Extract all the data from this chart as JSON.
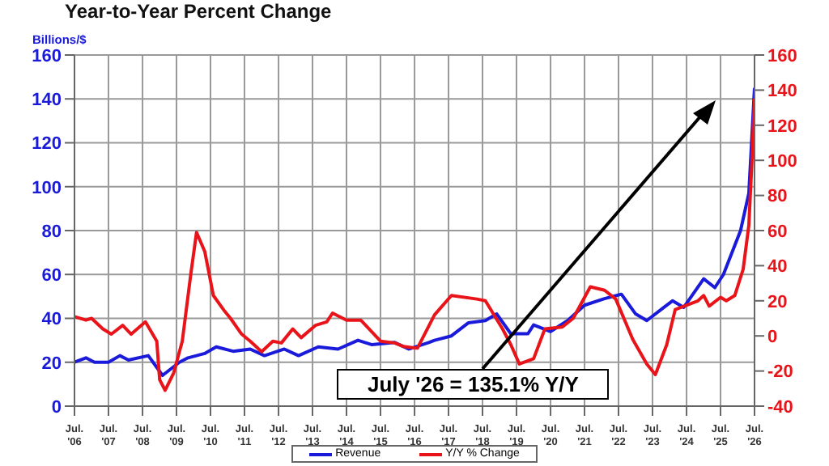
{
  "chart_data": {
    "type": "line",
    "title": "Year-to-Year Percent Change",
    "ylabel": "Billions/$",
    "xlim": [
      "2006-07",
      "2026-07"
    ],
    "xticks": [
      {
        "value": "2006-07",
        "label": "Jul. '06"
      },
      {
        "value": "2007-07",
        "label": "Jul. '07"
      },
      {
        "value": "2008-07",
        "label": "Jul. '08"
      },
      {
        "value": "2009-07",
        "label": "Jul. '09"
      },
      {
        "value": "2010-07",
        "label": "Jul. '10"
      },
      {
        "value": "2011-07",
        "label": "Jul. '11"
      },
      {
        "value": "2012-07",
        "label": "Jul. '12"
      },
      {
        "value": "2013-07",
        "label": "Jul. '13"
      },
      {
        "value": "2014-07",
        "label": "Jul. '14"
      },
      {
        "value": "2015-07",
        "label": "Jul. '15"
      },
      {
        "value": "2016-07",
        "label": "Jul. '16"
      },
      {
        "value": "2017-07",
        "label": "Jul. '17"
      },
      {
        "value": "2018-07",
        "label": "Jul. '18"
      },
      {
        "value": "2019-07",
        "label": "Jul. '19"
      },
      {
        "value": "2020-07",
        "label": "Jul. '20"
      },
      {
        "value": "2021-07",
        "label": "Jul. '21"
      },
      {
        "value": "2022-07",
        "label": "Jul. '22"
      },
      {
        "value": "2023-07",
        "label": "Jul. '23"
      },
      {
        "value": "2024-07",
        "label": "Jul. '24"
      },
      {
        "value": "2025-07",
        "label": "Jul. '25"
      },
      {
        "value": "2026-07",
        "label": "Jul. '26"
      }
    ],
    "ylim": [
      0,
      160
    ],
    "yticks": [
      0,
      20,
      40,
      60,
      80,
      100,
      120,
      140,
      160
    ],
    "y2lim": [
      -40,
      160
    ],
    "y2ticks": [
      -40,
      -20,
      0,
      20,
      40,
      60,
      80,
      100,
      120,
      140,
      160
    ],
    "grid": true,
    "legend": "bottom",
    "marker": "none",
    "line_style": "solid",
    "annotations": [
      "July '26 = 135.1% Y/Y"
    ],
    "series": [
      {
        "name": "Revenue",
        "color": "#1a1adb",
        "x": [
          "2006-07",
          "2006-11",
          "2007-02",
          "2007-07",
          "2007-11",
          "2008-02",
          "2008-09",
          "2009-02",
          "2009-08",
          "2009-11",
          "2010-05",
          "2010-09",
          "2011-03",
          "2011-09",
          "2012-02",
          "2012-09",
          "2013-02",
          "2013-09",
          "2014-04",
          "2014-11",
          "2015-04",
          "2015-12",
          "2016-05",
          "2016-12",
          "2017-02",
          "2017-08",
          "2018-02",
          "2018-08",
          "2018-12",
          "2019-05",
          "2019-11",
          "2020-01",
          "2020-07",
          "2021-01",
          "2021-07",
          "2022-02",
          "2022-08",
          "2023-01",
          "2023-05",
          "2023-11",
          "2024-02",
          "2024-06",
          "2025-01",
          "2025-05",
          "2025-08",
          "2026-02",
          "2026-05",
          "2026-07"
        ],
        "values": [
          20,
          22,
          20,
          20,
          23,
          21,
          23,
          14,
          20,
          22,
          24,
          27,
          25,
          26,
          23,
          26,
          23,
          27,
          26,
          30,
          28,
          29,
          26,
          29,
          30,
          32,
          38,
          39,
          42,
          33,
          33,
          37,
          34,
          39,
          46,
          49,
          51,
          42,
          39,
          45,
          48,
          45,
          58,
          54,
          60,
          80,
          97,
          145
        ]
      },
      {
        "name": "Y/Y % Change",
        "color": "#e8141a",
        "axis": "y2",
        "x": [
          "2006-07",
          "2006-11",
          "2007-01",
          "2007-05",
          "2007-08",
          "2007-12",
          "2008-03",
          "2008-08",
          "2008-12",
          "2009-01",
          "2009-03",
          "2009-06",
          "2009-09",
          "2009-12",
          "2010-02",
          "2010-05",
          "2010-08",
          "2010-12",
          "2011-02",
          "2011-06",
          "2011-09",
          "2012-01",
          "2012-05",
          "2012-08",
          "2012-12",
          "2013-03",
          "2013-08",
          "2013-12",
          "2014-02",
          "2014-07",
          "2014-12",
          "2015-03",
          "2015-07",
          "2015-12",
          "2016-03",
          "2016-08",
          "2017-02",
          "2017-08",
          "2018-05",
          "2018-08",
          "2019-02",
          "2019-05",
          "2019-08",
          "2020-01",
          "2020-05",
          "2020-11",
          "2021-03",
          "2021-09",
          "2022-02",
          "2022-06",
          "2022-12",
          "2023-05",
          "2023-08",
          "2023-12",
          "2024-03",
          "2024-11",
          "2025-01",
          "2025-03",
          "2025-07",
          "2025-09",
          "2025-12",
          "2026-03",
          "2026-05",
          "2026-06",
          "2026-07"
        ],
        "values": [
          11,
          9,
          10,
          4,
          1,
          6,
          1,
          8,
          -3,
          -25,
          -31,
          -21,
          -3,
          35,
          59,
          48,
          23,
          14,
          10,
          1,
          -3,
          -9,
          -3,
          -4,
          4,
          -1,
          6,
          8,
          13,
          9,
          9,
          4,
          -3,
          -4,
          -6,
          -7,
          12,
          23,
          21,
          20,
          4,
          -5,
          -16,
          -13,
          4,
          5,
          10,
          28,
          26,
          21,
          -2,
          -16,
          -22,
          -5,
          15,
          20,
          23,
          17,
          22,
          20,
          23,
          38,
          63,
          97,
          135.1
        ]
      }
    ]
  }
}
